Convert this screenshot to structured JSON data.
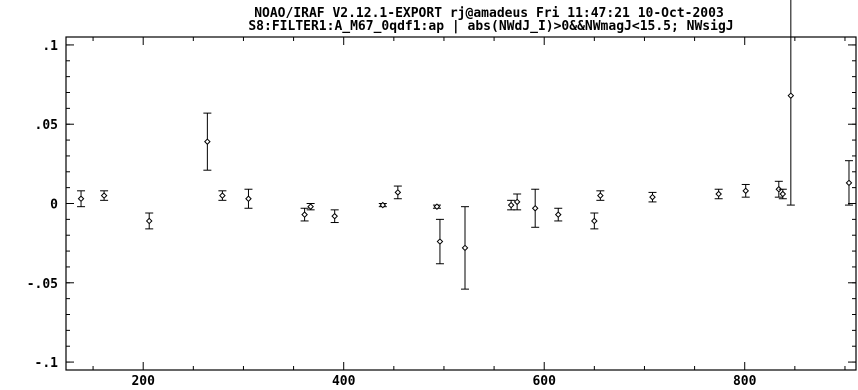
{
  "chart_data": {
    "type": "scatter",
    "title": "NOAO/IRAF V2.12.1-EXPORT rj@amadeus Fri 11:47:21 10-Oct-2003",
    "subtitle": "S8:FILTER1:A_M67_0qdf1:ap | abs(NWdJ_I)>0&&NWmagJ<15.5; NWsigJ",
    "xlabel": "",
    "ylabel": "",
    "xlim": [
      123,
      911
    ],
    "ylim": [
      -0.105,
      0.105
    ],
    "x_ticks": [
      200,
      400,
      600,
      800
    ],
    "x_tick_labels": [
      "200",
      "400",
      "600",
      "800"
    ],
    "y_ticks": [
      -0.1,
      -0.05,
      0,
      0.05,
      0.1
    ],
    "y_tick_labels": [
      "-.1",
      "-.05",
      "0",
      ".05",
      ".1"
    ],
    "grid": false,
    "series": [
      {
        "marker": "diamond",
        "error_bars": true,
        "points": [
          {
            "x": 138,
            "y": 0.003,
            "err": 0.005
          },
          {
            "x": 161,
            "y": 0.005,
            "err": 0.003
          },
          {
            "x": 206,
            "y": -0.011,
            "err": 0.005
          },
          {
            "x": 264,
            "y": 0.039,
            "err": 0.018
          },
          {
            "x": 279,
            "y": 0.005,
            "err": 0.003
          },
          {
            "x": 305,
            "y": 0.003,
            "err": 0.006
          },
          {
            "x": 361,
            "y": -0.007,
            "err": 0.004
          },
          {
            "x": 367,
            "y": -0.002,
            "err": 0.002
          },
          {
            "x": 391,
            "y": -0.008,
            "err": 0.004
          },
          {
            "x": 439,
            "y": -0.001,
            "err": 0.001
          },
          {
            "x": 454,
            "y": 0.007,
            "err": 0.004
          },
          {
            "x": 493,
            "y": -0.002,
            "err": 0.001
          },
          {
            "x": 496,
            "y": -0.024,
            "err": 0.014
          },
          {
            "x": 521,
            "y": -0.028,
            "err": 0.026
          },
          {
            "x": 567,
            "y": -0.001,
            "err": 0.003
          },
          {
            "x": 573,
            "y": 0.001,
            "err": 0.005
          },
          {
            "x": 591,
            "y": -0.003,
            "err": 0.012
          },
          {
            "x": 614,
            "y": -0.007,
            "err": 0.004
          },
          {
            "x": 650,
            "y": -0.011,
            "err": 0.005
          },
          {
            "x": 656,
            "y": 0.005,
            "err": 0.003
          },
          {
            "x": 708,
            "y": 0.004,
            "err": 0.003
          },
          {
            "x": 774,
            "y": 0.006,
            "err": 0.003
          },
          {
            "x": 801,
            "y": 0.008,
            "err": 0.004
          },
          {
            "x": 834,
            "y": 0.009,
            "err": 0.005
          },
          {
            "x": 838,
            "y": 0.006,
            "err": 0.003
          },
          {
            "x": 846,
            "y": 0.068,
            "err": 0.069
          },
          {
            "x": 904,
            "y": 0.013,
            "err": 0.014
          }
        ]
      }
    ]
  }
}
